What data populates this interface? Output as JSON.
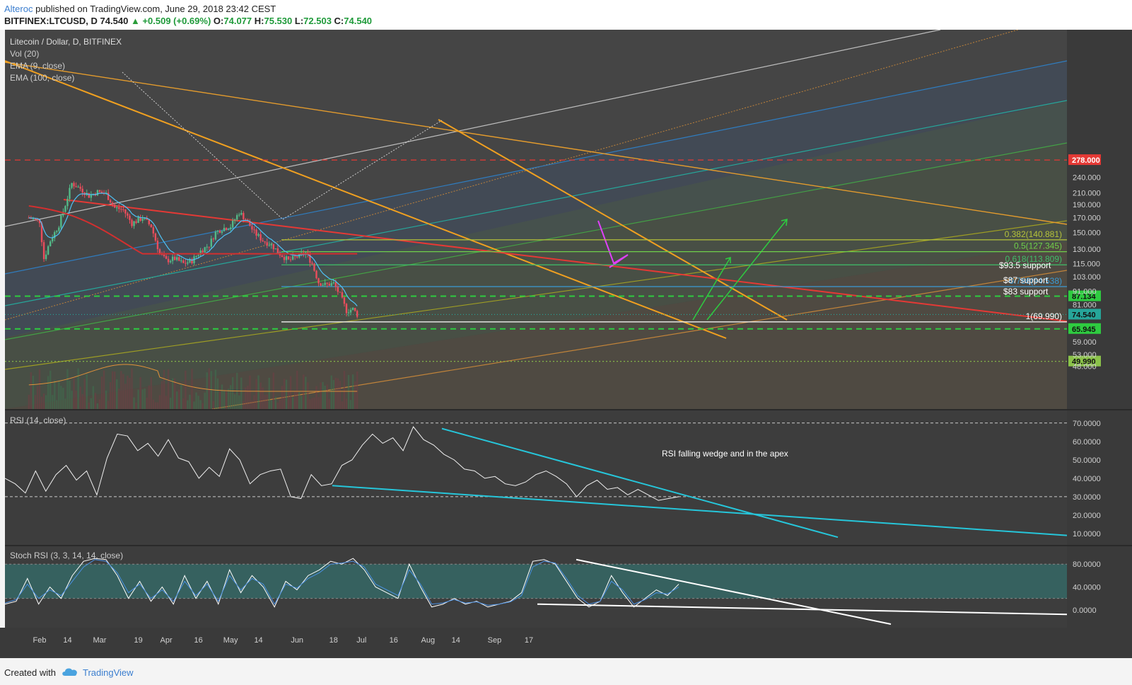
{
  "header": {
    "author": "Alteroc",
    "published": "published on TradingView.com, June 29, 2018 23:42 CEST",
    "symbol": "BITFINEX:LTCUSD, D",
    "last": "74.540",
    "change": "+0.509 (+0.69%)",
    "o_label": "O:",
    "o_value": "74.077",
    "h_label": "H:",
    "h_value": "75.530",
    "l_label": "L:",
    "l_value": "72.503",
    "c_label": "C:",
    "c_value": "74.540"
  },
  "footer": {
    "created_with": "Created with",
    "brand": "TradingView"
  },
  "chart_data": [
    {
      "type": "candlestick",
      "title": "Litecoin / Dollar, D, BITFINEX",
      "indicators": [
        "Vol (20)",
        "EMA (9, close)",
        "EMA (100, close)"
      ],
      "y_scale": "log",
      "ylim": [
        46,
        282
      ],
      "price_ticks": [
        "240.000",
        "210.000",
        "190.000",
        "170.000",
        "150.000",
        "130.000",
        "115.000",
        "103.000",
        "91.000",
        "81.000",
        "59.000",
        "53.000",
        "48.000"
      ],
      "highlighted_levels": [
        {
          "value": 278.0,
          "label": "278.000",
          "color": "#e53935"
        },
        {
          "value": 87.134,
          "label": "87.134",
          "color": "#2ecc40"
        },
        {
          "value": 74.54,
          "label": "74.540",
          "color": "#26a69a"
        },
        {
          "value": 65.945,
          "label": "65.945",
          "color": "#2ecc40"
        },
        {
          "value": 49.99,
          "label": "49.990",
          "color": "#8bc34a"
        }
      ],
      "fib_levels": [
        {
          "label": "0.382(140.881)",
          "value": 140.881,
          "color": "#b5c33a"
        },
        {
          "label": "0.5(127.345)",
          "value": 127.345,
          "color": "#6fcf4a"
        },
        {
          "label": "0.618(113.809)",
          "value": 113.809,
          "color": "#3fbf6a"
        },
        {
          "label": "0.786(94.538)",
          "value": 94.538,
          "color": "#3a9bd5"
        },
        {
          "label": "1(69.990)",
          "value": 69.99,
          "color": "#ffffff"
        }
      ],
      "annotations": [
        "$93.5 support",
        "$87 support",
        "$83 support"
      ],
      "x_ticks": [
        "Feb",
        "14",
        "Mar",
        "19",
        "Apr",
        "16",
        "May",
        "14",
        "Jun",
        "18",
        "Jul",
        "16",
        "Aug",
        "14",
        "Sep",
        "17"
      ],
      "close_path": [
        [
          "Jan 27",
          170
        ],
        [
          "Feb 1",
          165
        ],
        [
          "Feb 3",
          120
        ],
        [
          "Feb 6",
          140
        ],
        [
          "Feb 10",
          160
        ],
        [
          "Feb 13",
          190
        ],
        [
          "Feb 16",
          228
        ],
        [
          "Feb 20",
          218
        ],
        [
          "Feb 24",
          205
        ],
        [
          "Feb 28",
          212
        ],
        [
          "Mar 4",
          208
        ],
        [
          "Mar 8",
          185
        ],
        [
          "Mar 12",
          182
        ],
        [
          "Mar 16",
          162
        ],
        [
          "Mar 21",
          170
        ],
        [
          "Mar 25",
          158
        ],
        [
          "Mar 29",
          125
        ],
        [
          "Apr 1",
          118
        ],
        [
          "Apr 5",
          120
        ],
        [
          "Apr 9",
          115
        ],
        [
          "Apr 13",
          118
        ],
        [
          "Apr 17",
          128
        ],
        [
          "Apr 21",
          135
        ],
        [
          "Apr 24",
          150
        ],
        [
          "Apr 27",
          155
        ],
        [
          "May 1",
          158
        ],
        [
          "May 5",
          178
        ],
        [
          "May 8",
          168
        ],
        [
          "May 12",
          150
        ],
        [
          "May 16",
          140
        ],
        [
          "May 20",
          135
        ],
        [
          "May 24",
          125
        ],
        [
          "May 28",
          118
        ],
        [
          "Jun 1",
          122
        ],
        [
          "Jun 5",
          126
        ],
        [
          "Jun 8",
          115
        ],
        [
          "Jun 11",
          98
        ],
        [
          "Jun 14",
          96
        ],
        [
          "Jun 18",
          97
        ],
        [
          "Jun 21",
          88
        ],
        [
          "Jun 24",
          77
        ],
        [
          "Jun 27",
          78
        ],
        [
          "Jun 29",
          74.54
        ]
      ]
    },
    {
      "type": "line",
      "title": "RSI (14, close)",
      "ylim": [
        5,
        73
      ],
      "y_ticks": [
        "70.0000",
        "60.0000",
        "50.0000",
        "40.0000",
        "30.0000",
        "20.0000",
        "10.0000"
      ],
      "reference_levels": [
        70,
        30
      ],
      "annotation": "RSI falling wedge and in the apex",
      "series": [
        {
          "values": [
            40,
            37,
            32,
            44,
            33,
            42,
            47,
            39,
            44,
            31,
            51,
            64,
            63,
            55,
            59,
            52,
            61,
            51,
            49,
            40,
            46,
            41,
            56,
            50,
            37,
            42,
            44,
            45,
            30,
            29,
            42,
            36,
            37,
            47,
            50,
            58,
            64,
            59,
            62,
            55,
            68,
            61,
            58,
            53,
            50,
            45,
            44,
            40,
            41,
            37,
            36,
            38,
            42,
            44,
            41,
            37,
            30,
            36,
            39,
            34,
            35,
            31,
            34,
            31,
            28,
            29,
            30
          ]
        }
      ]
    },
    {
      "type": "line",
      "title": "Stoch RSI (3, 3, 14, 14, close)",
      "ylim": [
        -25,
        105
      ],
      "y_ticks": [
        "80.0000",
        "40.0000",
        "0.0000"
      ],
      "band": [
        20,
        80
      ],
      "series": [
        {
          "values": [
            10,
            15,
            55,
            10,
            40,
            20,
            60,
            85,
            90,
            88,
            60,
            20,
            50,
            15,
            40,
            10,
            60,
            20,
            50,
            10,
            70,
            30,
            60,
            40,
            5,
            50,
            35,
            60,
            70,
            85,
            80,
            90,
            70,
            40,
            30,
            20,
            80,
            40,
            5,
            10,
            20,
            10,
            15,
            5,
            10,
            15,
            30,
            85,
            88,
            80,
            50,
            20,
            5,
            15,
            60,
            30,
            5,
            20,
            35,
            25,
            45
          ]
        },
        {
          "values": [
            12,
            18,
            45,
            20,
            35,
            25,
            50,
            75,
            88,
            85,
            65,
            30,
            45,
            20,
            35,
            15,
            50,
            25,
            45,
            15,
            60,
            35,
            55,
            45,
            10,
            45,
            38,
            55,
            65,
            80,
            82,
            85,
            75,
            45,
            35,
            25,
            70,
            45,
            10,
            12,
            18,
            12,
            14,
            8,
            10,
            14,
            25,
            75,
            85,
            82,
            55,
            25,
            10,
            15,
            50,
            35,
            10,
            18,
            30,
            28,
            40
          ]
        }
      ]
    }
  ]
}
